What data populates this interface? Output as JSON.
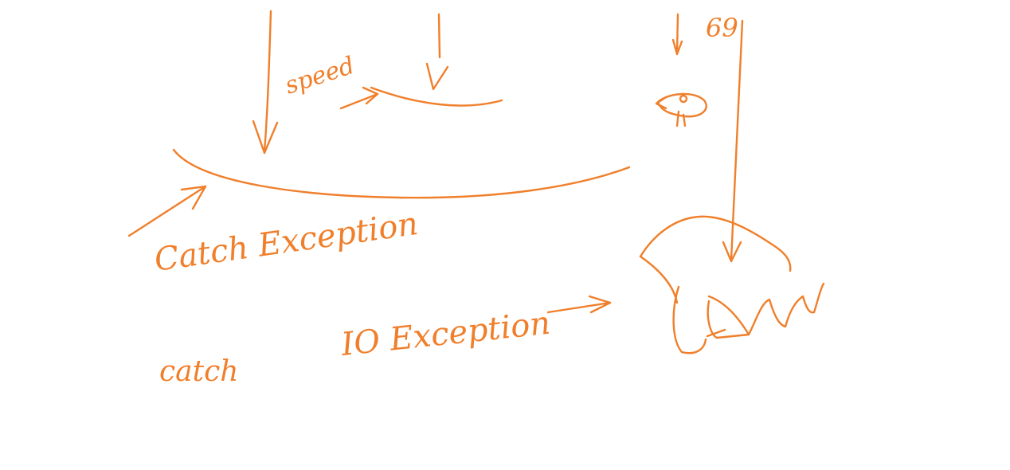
{
  "ink_color": "#f07f2b",
  "background_color": "#ffffff",
  "labels": {
    "speed": "speed",
    "catch_exception": "Catch Exception",
    "io_exception": "IO Exception",
    "catch": "catch",
    "number": "69"
  },
  "drawings": {
    "small_creature_icon": "creature-sketch",
    "glove_icon": "catching-glove-sketch"
  }
}
